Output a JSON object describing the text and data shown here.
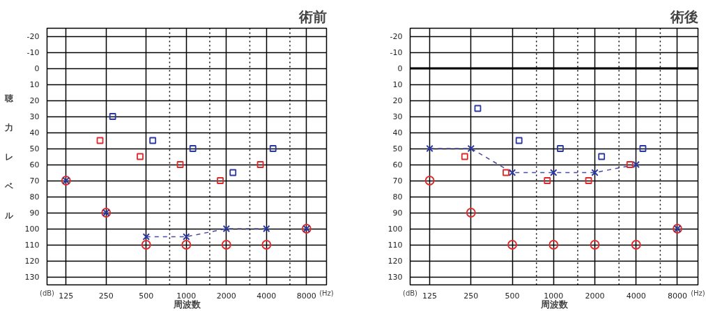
{
  "chart_data": [
    {
      "type": "scatter",
      "title": "術前",
      "ylabel": "聴力レベル",
      "xlabel": "周波数",
      "annotations": [
        "(dB)",
        "(Hz)"
      ],
      "log": "x",
      "grid": true,
      "xlim": [
        90,
        11300
      ],
      "xticks": [
        125,
        250,
        500,
        1000,
        2000,
        4000,
        8000
      ],
      "ylim": [
        135,
        -25
      ],
      "yticks": [
        -20,
        -10,
        0,
        10,
        20,
        30,
        40,
        50,
        60,
        70,
        80,
        90,
        100,
        110,
        120,
        130
      ],
      "ref_lines": [
        {
          "axis": "x",
          "value": 750,
          "color": "#000000",
          "line_style": "dotted"
        },
        {
          "axis": "x",
          "value": 1500,
          "color": "#000000",
          "line_style": "dotted"
        },
        {
          "axis": "x",
          "value": 3000,
          "color": "#000000",
          "line_style": "dotted"
        },
        {
          "axis": "x",
          "value": 6000,
          "color": "#000000",
          "line_style": "dotted"
        }
      ],
      "series": [
        {
          "type": "line",
          "color": "#4a4aa8",
          "line_style": "dashed",
          "marker": "none",
          "x": [
            500,
            1000,
            2000,
            4000
          ],
          "values": [
            105,
            105,
            100,
            100
          ]
        },
        {
          "color": "#e02828",
          "marker": "circle",
          "x": [
            125,
            250,
            500,
            1000,
            2000,
            4000,
            8000
          ],
          "values": [
            70,
            90,
            110,
            110,
            110,
            110,
            100
          ]
        },
        {
          "color": "#2838a0",
          "marker": "cross",
          "x": [
            125,
            250,
            500,
            1000,
            2000,
            4000,
            8000
          ],
          "values": [
            70,
            90,
            105,
            105,
            100,
            100,
            100
          ]
        },
        {
          "color": "#e02828",
          "marker": "square",
          "x": [
            225,
            450,
            900,
            1800,
            3600
          ],
          "values": [
            45,
            55,
            60,
            70,
            60
          ]
        },
        {
          "color": "#2838a0",
          "marker": "square",
          "x": [
            280,
            560,
            1120,
            2240,
            4480
          ],
          "values": [
            30,
            45,
            50,
            65,
            50
          ]
        }
      ]
    },
    {
      "type": "scatter",
      "title": "術後",
      "xlabel": "周波数",
      "annotations": [
        "(dB)",
        "(Hz)"
      ],
      "log": "x",
      "grid": true,
      "xlim": [
        90,
        11300
      ],
      "xticks": [
        125,
        250,
        500,
        1000,
        2000,
        4000,
        8000
      ],
      "ylim": [
        135,
        -25
      ],
      "yticks": [
        -20,
        -10,
        0,
        10,
        20,
        30,
        40,
        50,
        60,
        70,
        80,
        90,
        100,
        110,
        120,
        130
      ],
      "ref_lines": [
        {
          "axis": "x",
          "value": 750,
          "color": "#000000",
          "line_style": "dotted"
        },
        {
          "axis": "x",
          "value": 1500,
          "color": "#000000",
          "line_style": "dotted"
        },
        {
          "axis": "x",
          "value": 3000,
          "color": "#000000",
          "line_style": "dotted"
        },
        {
          "axis": "x",
          "value": 6000,
          "color": "#000000",
          "line_style": "dotted"
        },
        {
          "axis": "y",
          "value": 0,
          "color": "#000000",
          "line_style": "solid"
        }
      ],
      "series": [
        {
          "type": "line",
          "color": "#4a4aa8",
          "line_style": "dashed",
          "marker": "none",
          "x": [
            125,
            250,
            500,
            1000,
            2000,
            4000
          ],
          "values": [
            50,
            50,
            65,
            65,
            65,
            60
          ]
        },
        {
          "color": "#e02828",
          "marker": "circle",
          "x": [
            125,
            250,
            500,
            1000,
            2000,
            4000,
            8000
          ],
          "values": [
            70,
            90,
            110,
            110,
            110,
            110,
            100
          ]
        },
        {
          "color": "#2838a0",
          "marker": "cross",
          "x": [
            125,
            250,
            500,
            1000,
            2000,
            4000,
            8000
          ],
          "values": [
            50,
            50,
            65,
            65,
            65,
            60,
            100
          ]
        },
        {
          "color": "#e02828",
          "marker": "square",
          "x": [
            225,
            450,
            900,
            1800,
            3600
          ],
          "values": [
            55,
            65,
            70,
            70,
            60
          ]
        },
        {
          "color": "#2838a0",
          "marker": "square",
          "x": [
            280,
            560,
            1120,
            2240,
            4480
          ],
          "values": [
            25,
            45,
            50,
            55,
            50
          ]
        }
      ]
    }
  ]
}
